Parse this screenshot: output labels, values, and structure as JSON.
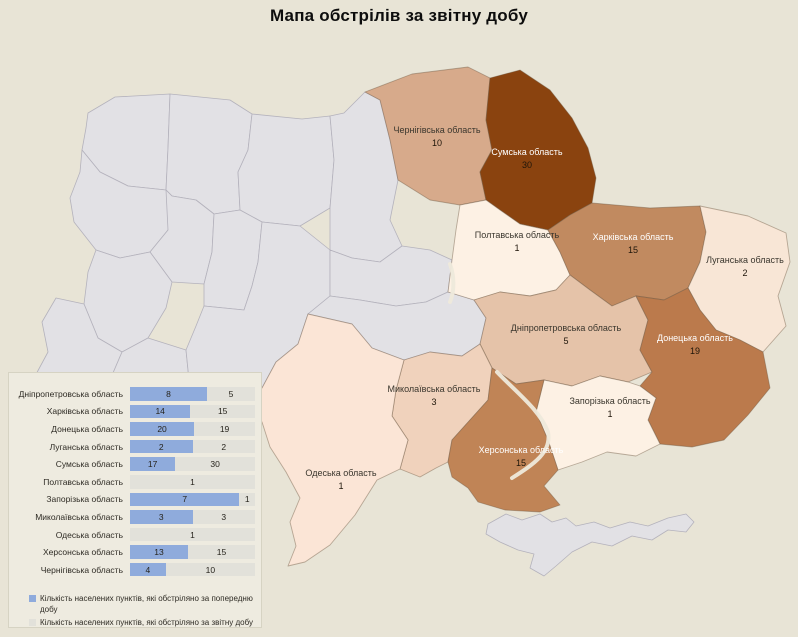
{
  "title": "Мапа обстрілів за звітну добу",
  "map": {
    "no_data_color": "#e2e1e5",
    "regions": [
      {
        "id": "chernihiv",
        "label": "Чернігівська область",
        "value": "10",
        "color": "#d7aa8b",
        "label_color": "dark"
      },
      {
        "id": "sumy",
        "label": "Сумська область",
        "value": "30",
        "color": "#8a430f",
        "label_color": "light"
      },
      {
        "id": "poltava",
        "label": "Полтавська область",
        "value": "1",
        "color": "#fdf1e4",
        "label_color": "dark"
      },
      {
        "id": "kharkiv",
        "label": "Харківська область",
        "value": "15",
        "color": "#c18a60",
        "label_color": "light"
      },
      {
        "id": "luhansk",
        "label": "Луганська область",
        "value": "2",
        "color": "#f8e6d6",
        "label_color": "dark"
      },
      {
        "id": "dnipro",
        "label": "Дніпропетровська область",
        "value": "5",
        "color": "#e5c3a9",
        "label_color": "dark"
      },
      {
        "id": "donetsk",
        "label": "Донецька область",
        "value": "19",
        "color": "#bb7a4c",
        "label_color": "light"
      },
      {
        "id": "zaporizhzhia",
        "label": "Запорізька область",
        "value": "1",
        "color": "#fdf1e4",
        "label_color": "dark"
      },
      {
        "id": "mykolaiv",
        "label": "Миколаївська область",
        "value": "3",
        "color": "#f0d2bc",
        "label_color": "dark"
      },
      {
        "id": "kherson",
        "label": "Херсонська область",
        "value": "15",
        "color": "#c08456",
        "label_color": "light"
      },
      {
        "id": "odesa",
        "label": "Одеська область",
        "value": "1",
        "color": "#fbe5d6",
        "label_color": "dark"
      }
    ]
  },
  "chart_data": {
    "type": "bar",
    "orientation": "horizontal",
    "stacked": "percent",
    "legend_position": "bottom",
    "categories": [
      "Дніпропетровська область",
      "Харківська область",
      "Донецька область",
      "Луганська область",
      "Сумська область",
      "Полтавська область",
      "Запорізька область",
      "Миколаївська область",
      "Одеська область",
      "Херсонська область",
      "Чернігівська область"
    ],
    "series": [
      {
        "name": "Кількість населених пунктів, які обстріляно за попередню добу",
        "color": "#8fabdc",
        "values": [
          8,
          14,
          20,
          2,
          17,
          0,
          7,
          3,
          0,
          13,
          4
        ]
      },
      {
        "name": "Кількість населених пунктів, які обстріляно за звітну добу",
        "color": "#e2e1da",
        "values": [
          5,
          15,
          19,
          2,
          30,
          1,
          1,
          3,
          1,
          15,
          10
        ]
      }
    ]
  }
}
